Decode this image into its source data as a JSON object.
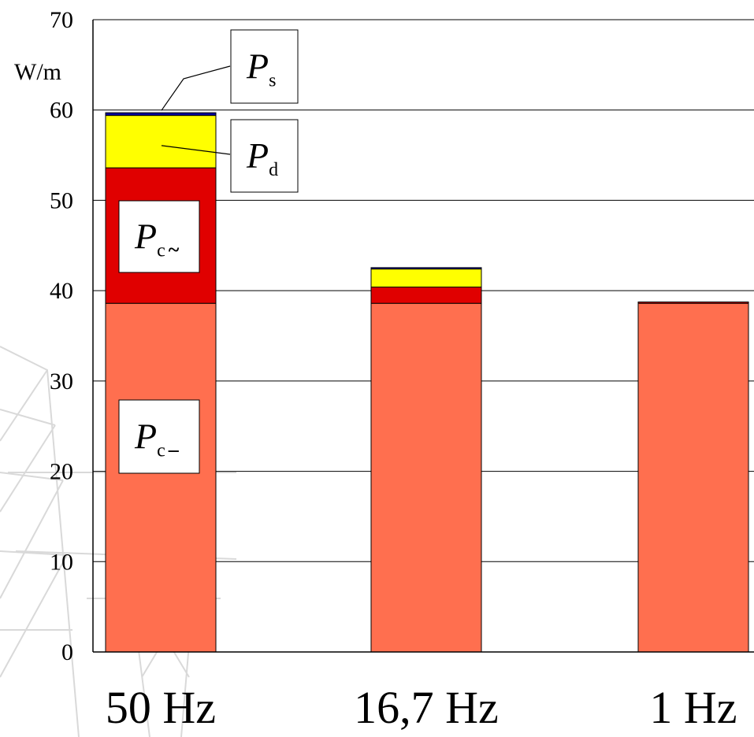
{
  "chart_data": {
    "type": "bar",
    "stacked": true,
    "categories": [
      "50 Hz",
      "16,7 Hz",
      "1 Hz"
    ],
    "y_unit": "W/m",
    "ylim": [
      0,
      70
    ],
    "y_ticks": [
      0,
      10,
      20,
      30,
      40,
      50,
      60,
      70
    ],
    "grid": true,
    "series": [
      {
        "name": "P_c–",
        "sub": "c",
        "sym": "–",
        "color": "#ff6f4f",
        "values": [
          38.6,
          38.6,
          38.6
        ]
      },
      {
        "name": "P_c~",
        "sub": "c",
        "sym": "~",
        "color": "#e00000",
        "values": [
          15.0,
          1.8,
          0.15
        ]
      },
      {
        "name": "P_d",
        "sub": "d",
        "sym": "",
        "color": "#ffff00",
        "values": [
          5.8,
          2.0,
          0.0
        ]
      },
      {
        "name": "P_s",
        "sub": "s",
        "sym": "",
        "color": "#0000a0",
        "values": [
          0.3,
          0.15,
          0.0
        ]
      }
    ]
  }
}
